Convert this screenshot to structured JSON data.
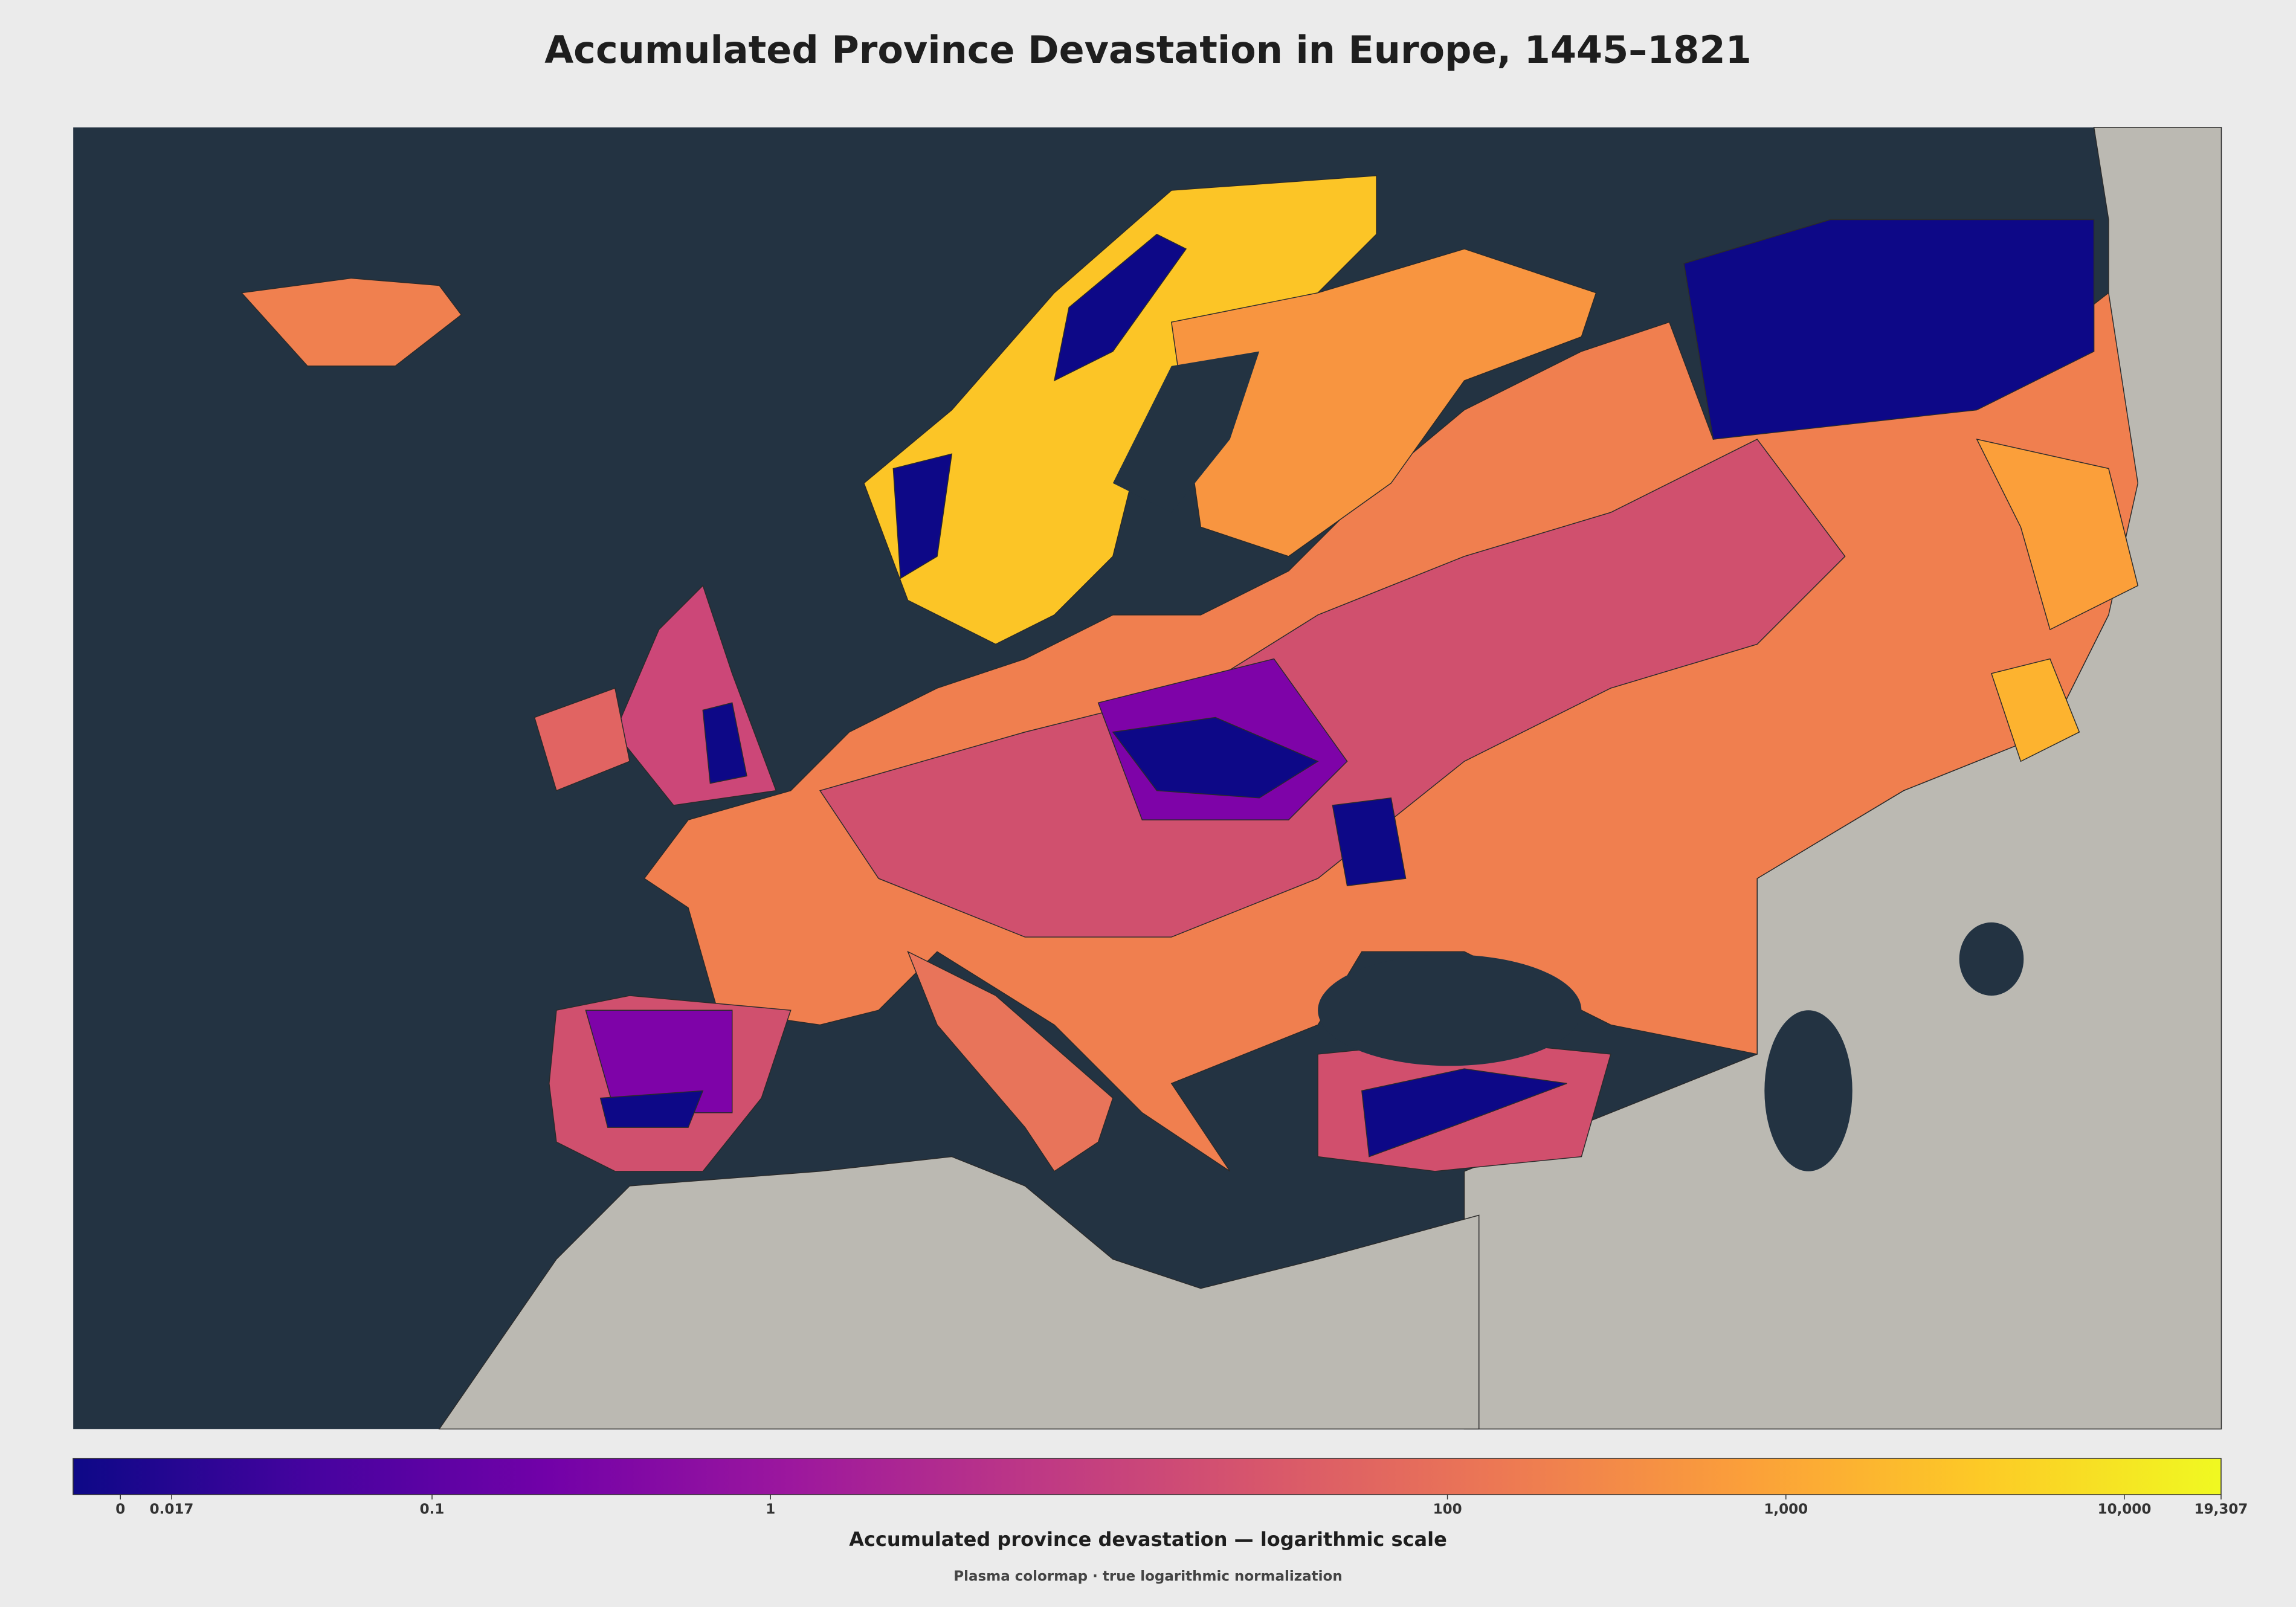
{
  "title": "Accumulated Province Devastation in Europe, 1445–1821",
  "colorbar": {
    "label": "Accumulated province devastation — logarithmic scale",
    "note": "Plasma colormap · true logarithmic normalization",
    "scale": "log",
    "colormap": "plasma",
    "colors": [
      "#0d0887",
      "#46039f",
      "#7201a8",
      "#9c179e",
      "#bd3786",
      "#d8576b",
      "#ed7953",
      "#fb9f3a",
      "#fdca26",
      "#f0f921"
    ],
    "lim": [
      0.0087,
      19307
    ],
    "ticks": [
      {
        "value": 0.012,
        "label": "0"
      },
      0.017,
      0.1,
      1,
      100,
      {
        "value": 1000,
        "label": "1,000"
      },
      {
        "value": 10000,
        "label": "10,000"
      },
      {
        "value": 19307,
        "label": "19,307"
      }
    ]
  }
}
